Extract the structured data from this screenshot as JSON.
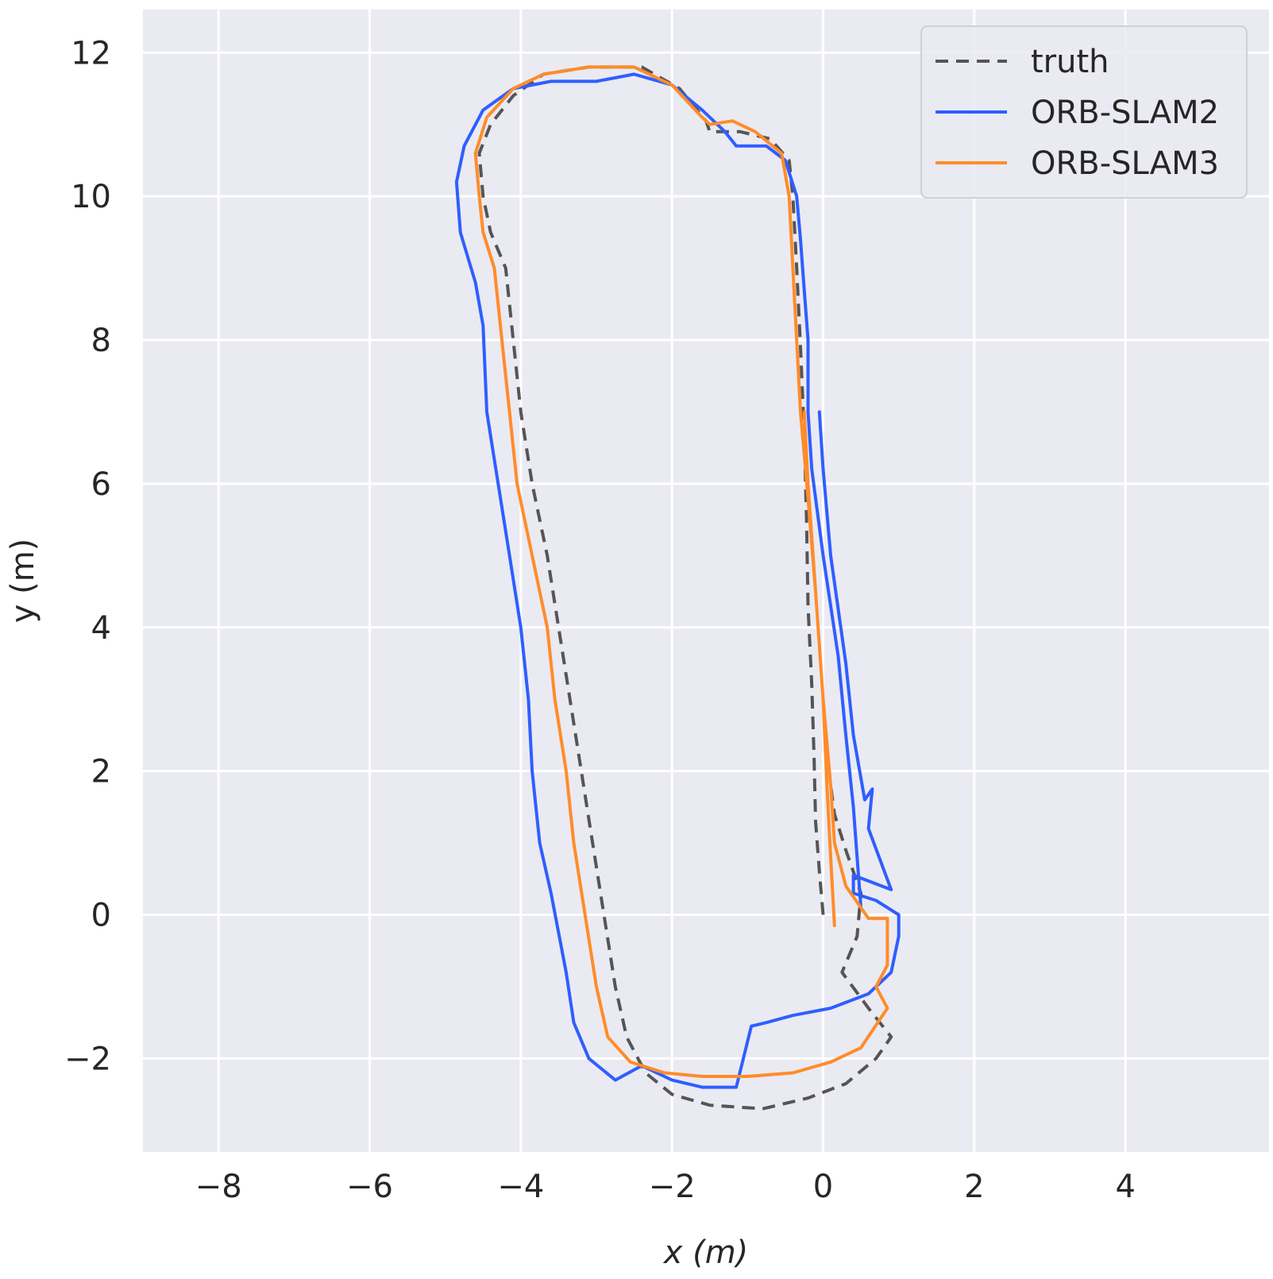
{
  "chart_data": {
    "type": "line",
    "xlabel": "x (m)",
    "ylabel": "y (m)",
    "xlim": [
      -9.0,
      5.9
    ],
    "ylim": [
      -3.3,
      12.6
    ],
    "xticks": [
      -8,
      -6,
      -4,
      -2,
      0,
      2,
      4
    ],
    "xtick_labels": [
      "−8",
      "−6",
      "−4",
      "−2",
      "0",
      "2",
      "4"
    ],
    "yticks": [
      -2,
      0,
      2,
      4,
      6,
      8,
      10,
      12
    ],
    "ytick_labels": [
      "−2",
      "0",
      "2",
      "4",
      "6",
      "8",
      "10",
      "12"
    ],
    "grid": true,
    "background": "#eaeaf2",
    "legend_position": "top-right",
    "series": [
      {
        "name": "truth",
        "color": "#555555",
        "style": "dashed",
        "points": [
          [
            0.0,
            0.0
          ],
          [
            -0.05,
            0.6
          ],
          [
            -0.1,
            1.3
          ],
          [
            -0.12,
            2.2
          ],
          [
            -0.15,
            3.2
          ],
          [
            -0.2,
            4.3
          ],
          [
            -0.22,
            5.5
          ],
          [
            -0.25,
            6.7
          ],
          [
            -0.3,
            7.9
          ],
          [
            -0.35,
            9.0
          ],
          [
            -0.4,
            10.0
          ],
          [
            -0.45,
            10.5
          ],
          [
            -0.7,
            10.8
          ],
          [
            -1.1,
            10.9
          ],
          [
            -1.5,
            10.9
          ],
          [
            -1.55,
            11.05
          ],
          [
            -1.9,
            11.5
          ],
          [
            -2.4,
            11.8
          ],
          [
            -3.1,
            11.8
          ],
          [
            -3.7,
            11.7
          ],
          [
            -4.1,
            11.4
          ],
          [
            -4.4,
            11.0
          ],
          [
            -4.55,
            10.6
          ],
          [
            -4.5,
            10.0
          ],
          [
            -4.4,
            9.5
          ],
          [
            -4.2,
            9.0
          ],
          [
            -4.1,
            8.0
          ],
          [
            -4.0,
            7.0
          ],
          [
            -3.85,
            6.0
          ],
          [
            -3.65,
            5.0
          ],
          [
            -3.5,
            4.0
          ],
          [
            -3.35,
            3.0
          ],
          [
            -3.2,
            2.0
          ],
          [
            -3.05,
            1.0
          ],
          [
            -2.9,
            0.0
          ],
          [
            -2.75,
            -1.0
          ],
          [
            -2.6,
            -1.7
          ],
          [
            -2.35,
            -2.2
          ],
          [
            -2.0,
            -2.5
          ],
          [
            -1.5,
            -2.65
          ],
          [
            -0.8,
            -2.7
          ],
          [
            -0.2,
            -2.55
          ],
          [
            0.3,
            -2.35
          ],
          [
            0.7,
            -2.0
          ],
          [
            0.9,
            -1.7
          ],
          [
            0.6,
            -1.3
          ],
          [
            0.25,
            -0.8
          ],
          [
            0.45,
            -0.3
          ],
          [
            0.5,
            0.3
          ],
          [
            0.3,
            0.9
          ],
          [
            0.15,
            1.4
          ],
          [
            0.1,
            1.8
          ]
        ]
      },
      {
        "name": "ORB-SLAM2",
        "color": "#2f5eff",
        "style": "solid",
        "points": [
          [
            0.5,
            0.1
          ],
          [
            0.45,
            0.8
          ],
          [
            0.4,
            1.5
          ],
          [
            0.3,
            2.5
          ],
          [
            0.2,
            3.6
          ],
          [
            0.0,
            5.0
          ],
          [
            -0.15,
            6.2
          ],
          [
            -0.2,
            7.0
          ],
          [
            -0.2,
            8.0
          ],
          [
            -0.25,
            8.7
          ],
          [
            -0.3,
            9.4
          ],
          [
            -0.35,
            10.0
          ],
          [
            -0.5,
            10.5
          ],
          [
            -0.75,
            10.7
          ],
          [
            -1.15,
            10.7
          ],
          [
            -1.3,
            10.9
          ],
          [
            -1.6,
            11.2
          ],
          [
            -2.0,
            11.55
          ],
          [
            -2.5,
            11.7
          ],
          [
            -3.0,
            11.6
          ],
          [
            -3.6,
            11.6
          ],
          [
            -4.1,
            11.5
          ],
          [
            -4.5,
            11.2
          ],
          [
            -4.75,
            10.7
          ],
          [
            -4.85,
            10.2
          ],
          [
            -4.8,
            9.5
          ],
          [
            -4.6,
            8.8
          ],
          [
            -4.5,
            8.2
          ],
          [
            -4.45,
            7.0
          ],
          [
            -4.3,
            6.0
          ],
          [
            -4.15,
            5.0
          ],
          [
            -4.0,
            4.0
          ],
          [
            -3.9,
            3.0
          ],
          [
            -3.85,
            2.0
          ],
          [
            -3.75,
            1.0
          ],
          [
            -3.6,
            0.3
          ],
          [
            -3.4,
            -0.8
          ],
          [
            -3.3,
            -1.5
          ],
          [
            -3.1,
            -2.0
          ],
          [
            -2.75,
            -2.3
          ],
          [
            -2.4,
            -2.1
          ],
          [
            -2.0,
            -2.3
          ],
          [
            -1.6,
            -2.4
          ],
          [
            -1.15,
            -2.4
          ],
          [
            -0.95,
            -1.55
          ],
          [
            -0.75,
            -1.5
          ],
          [
            -0.4,
            -1.4
          ],
          [
            0.1,
            -1.3
          ],
          [
            0.6,
            -1.1
          ],
          [
            0.9,
            -0.8
          ],
          [
            1.0,
            -0.3
          ],
          [
            1.0,
            0.0
          ],
          [
            0.7,
            0.2
          ],
          [
            0.4,
            0.3
          ],
          [
            0.4,
            0.55
          ],
          [
            0.9,
            0.35
          ],
          [
            0.6,
            1.2
          ],
          [
            0.65,
            1.75
          ],
          [
            0.55,
            1.6
          ],
          [
            0.4,
            2.5
          ],
          [
            0.3,
            3.5
          ],
          [
            0.1,
            5.0
          ],
          [
            0.0,
            6.2
          ],
          [
            -0.05,
            7.0
          ]
        ]
      },
      {
        "name": "ORB-SLAM3",
        "color": "#ff8c2a",
        "style": "solid",
        "points": [
          [
            0.15,
            -0.15
          ],
          [
            0.1,
            0.8
          ],
          [
            0.05,
            1.8
          ],
          [
            0.0,
            3.0
          ],
          [
            -0.1,
            4.5
          ],
          [
            -0.2,
            5.8
          ],
          [
            -0.3,
            7.0
          ],
          [
            -0.35,
            8.0
          ],
          [
            -0.4,
            9.0
          ],
          [
            -0.45,
            10.0
          ],
          [
            -0.55,
            10.6
          ],
          [
            -0.9,
            10.9
          ],
          [
            -1.2,
            11.05
          ],
          [
            -1.5,
            11.0
          ],
          [
            -1.6,
            11.1
          ],
          [
            -2.0,
            11.55
          ],
          [
            -2.5,
            11.8
          ],
          [
            -3.1,
            11.8
          ],
          [
            -3.7,
            11.7
          ],
          [
            -4.1,
            11.5
          ],
          [
            -4.45,
            11.1
          ],
          [
            -4.6,
            10.6
          ],
          [
            -4.55,
            10.0
          ],
          [
            -4.5,
            9.5
          ],
          [
            -4.35,
            9.0
          ],
          [
            -4.25,
            8.0
          ],
          [
            -4.15,
            7.0
          ],
          [
            -4.05,
            6.0
          ],
          [
            -3.85,
            5.0
          ],
          [
            -3.65,
            4.0
          ],
          [
            -3.55,
            3.0
          ],
          [
            -3.4,
            2.0
          ],
          [
            -3.3,
            1.0
          ],
          [
            -3.15,
            0.0
          ],
          [
            -3.0,
            -1.0
          ],
          [
            -2.85,
            -1.7
          ],
          [
            -2.55,
            -2.05
          ],
          [
            -2.1,
            -2.2
          ],
          [
            -1.6,
            -2.25
          ],
          [
            -1.0,
            -2.25
          ],
          [
            -0.4,
            -2.2
          ],
          [
            0.1,
            -2.05
          ],
          [
            0.5,
            -1.85
          ],
          [
            0.85,
            -1.3
          ],
          [
            0.7,
            -1.0
          ],
          [
            0.85,
            -0.7
          ],
          [
            0.85,
            -0.05
          ],
          [
            0.6,
            -0.05
          ],
          [
            0.3,
            0.4
          ],
          [
            0.15,
            1.0
          ],
          [
            0.1,
            1.8
          ],
          [
            0.0,
            3.0
          ],
          [
            -0.1,
            4.5
          ],
          [
            -0.2,
            6.0
          ],
          [
            -0.25,
            7.0
          ]
        ]
      }
    ]
  }
}
